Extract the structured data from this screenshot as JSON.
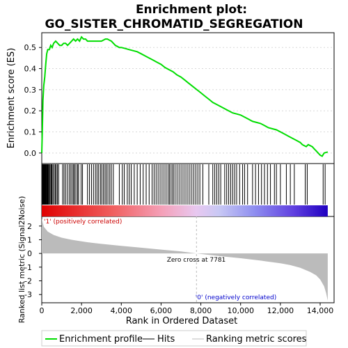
{
  "chart_data": {
    "type": "line",
    "title_line1": "Enrichment plot:",
    "title_line2": "GO_SISTER_CHROMATID_SEGREGATION",
    "ylabel_top": "Enrichment score (ES)",
    "ylabel_bottom": "Ranked list metric (Signal2Noise)",
    "xlabel": "Rank in Ordered Dataset",
    "x_ticks": [
      0,
      2000,
      4000,
      6000,
      8000,
      10000,
      12000,
      14000
    ],
    "x_tick_labels": [
      "0",
      "2,000",
      "4,000",
      "6,000",
      "8,000",
      "10,000",
      "12,000",
      "14,000"
    ],
    "xlim": [
      0,
      14700
    ],
    "n_genes": 14380,
    "es_ylim": [
      -0.05,
      0.57
    ],
    "es_ticks": [
      0.0,
      0.1,
      0.2,
      0.3,
      0.4,
      0.5
    ],
    "es_tick_labels": [
      "0.0",
      "0.1",
      "0.2",
      "0.3",
      "0.4",
      "0.5"
    ],
    "enrichment_profile": {
      "x": [
        0,
        30,
        60,
        100,
        150,
        200,
        250,
        300,
        380,
        450,
        520,
        600,
        700,
        800,
        900,
        1000,
        1100,
        1200,
        1300,
        1400,
        1500,
        1600,
        1700,
        1800,
        1900,
        2000,
        2100,
        2200,
        2300,
        2400,
        2500,
        2600,
        2700,
        2800,
        2900,
        3000,
        3100,
        3200,
        3300,
        3400,
        3500,
        3600,
        3700,
        3800,
        3900,
        4000,
        4200,
        4400,
        4600,
        4800,
        5000,
        5200,
        5400,
        5600,
        5800,
        6000,
        6200,
        6400,
        6600,
        6800,
        7000,
        7200,
        7400,
        7600,
        7800,
        8000,
        8200,
        8400,
        8600,
        8800,
        9000,
        9200,
        9400,
        9600,
        9800,
        10000,
        10200,
        10400,
        10600,
        10800,
        11000,
        11200,
        11400,
        11600,
        11800,
        12000,
        12200,
        12400,
        12600,
        12800,
        13000,
        13100,
        13200,
        13300,
        13400,
        13500,
        13600,
        13700,
        13800,
        13900,
        14000,
        14100,
        14200,
        14380
      ],
      "y": [
        0.0,
        0.12,
        0.25,
        0.32,
        0.36,
        0.42,
        0.47,
        0.49,
        0.49,
        0.51,
        0.5,
        0.52,
        0.53,
        0.52,
        0.51,
        0.51,
        0.52,
        0.52,
        0.51,
        0.52,
        0.53,
        0.54,
        0.53,
        0.54,
        0.53,
        0.55,
        0.54,
        0.54,
        0.53,
        0.53,
        0.53,
        0.53,
        0.53,
        0.53,
        0.53,
        0.53,
        0.535,
        0.54,
        0.54,
        0.535,
        0.53,
        0.52,
        0.51,
        0.505,
        0.5,
        0.5,
        0.495,
        0.49,
        0.485,
        0.48,
        0.47,
        0.46,
        0.45,
        0.44,
        0.43,
        0.42,
        0.405,
        0.395,
        0.385,
        0.37,
        0.36,
        0.345,
        0.33,
        0.315,
        0.3,
        0.285,
        0.27,
        0.255,
        0.24,
        0.23,
        0.22,
        0.21,
        0.2,
        0.19,
        0.185,
        0.18,
        0.17,
        0.16,
        0.15,
        0.145,
        0.14,
        0.13,
        0.12,
        0.115,
        0.11,
        0.1,
        0.09,
        0.08,
        0.07,
        0.06,
        0.05,
        0.04,
        0.035,
        0.03,
        0.04,
        0.035,
        0.03,
        0.02,
        0.01,
        0.0,
        -0.01,
        -0.015,
        0.0,
        0.005
      ]
    },
    "hits": [
      10,
      40,
      70,
      90,
      110,
      140,
      160,
      180,
      200,
      230,
      260,
      280,
      310,
      340,
      380,
      420,
      470,
      510,
      560,
      620,
      680,
      730,
      790,
      850,
      1050,
      1120,
      1200,
      1290,
      1380,
      1460,
      1530,
      1600,
      1650,
      1720,
      1800,
      1850,
      1980,
      2050,
      2300,
      2400,
      2500,
      2600,
      2700,
      2780,
      2860,
      2950,
      3020,
      3100,
      3180,
      3250,
      3330,
      3420,
      3500,
      3600,
      3900,
      4050,
      4150,
      4300,
      4400,
      4500,
      4650,
      4800,
      4950,
      5100,
      5250,
      5400,
      5550,
      5650,
      5750,
      5850,
      5950,
      6050,
      6150,
      6250,
      6350,
      6420,
      6500,
      6580,
      6650,
      6750,
      6850,
      6950,
      7050,
      7150,
      7250,
      7350,
      7450,
      7550,
      7650,
      7750,
      7850,
      7950,
      8100,
      8400,
      8600,
      8700,
      8800,
      8900,
      9000,
      9200,
      9300,
      9400,
      9500,
      9600,
      9700,
      9800,
      9950,
      10100,
      10200,
      10350,
      10600,
      10750,
      10900,
      11050,
      11200,
      11350,
      11500,
      11700,
      11800,
      12000,
      12300,
      12500,
      12700,
      13250,
      13350,
      14150,
      14250
    ],
    "metric": {
      "x": [
        0,
        100,
        300,
        600,
        1000,
        1500,
        2000,
        2500,
        3000,
        4000,
        5000,
        6000,
        7000,
        7781,
        8500,
        9000,
        10000,
        11000,
        12000,
        12500,
        13000,
        13500,
        13800,
        14000,
        14200,
        14300,
        14380
      ],
      "y": [
        2.55,
        1.95,
        1.6,
        1.35,
        1.15,
        1.0,
        0.88,
        0.78,
        0.7,
        0.55,
        0.42,
        0.28,
        0.15,
        0.0,
        -0.12,
        -0.2,
        -0.35,
        -0.52,
        -0.72,
        -0.85,
        -1.05,
        -1.35,
        -1.6,
        -1.9,
        -2.4,
        -2.9,
        -3.45
      ]
    },
    "metric_ylim": [
      -3.6,
      2.7
    ],
    "metric_ticks": [
      2,
      1,
      0,
      -1,
      -2,
      -3
    ],
    "metric_tick_labels": [
      "2",
      "1",
      "0",
      "-1",
      "-2",
      "-3"
    ],
    "zero_cross": 7781,
    "zero_cross_label": "Zero cross at 7781",
    "pos_label": "'1' (positively correlated)",
    "neg_label": "'0' (negatively correlated)",
    "legend": [
      "Enrichment profile",
      "Hits",
      "Ranking metric scores"
    ],
    "colors": {
      "profile": "#00dd00",
      "hits": "#000000",
      "metric_fill": "#bbbbbb",
      "pos_text": "#cc0000",
      "neg_text": "#0000cc",
      "zero_line": "#bbbbbb"
    },
    "heatmap_stops": [
      {
        "pos": 0.0,
        "color": "#e00000"
      },
      {
        "pos": 0.25,
        "color": "#f06060"
      },
      {
        "pos": 0.42,
        "color": "#f4a0b8"
      },
      {
        "pos": 0.54,
        "color": "#e8c8f0"
      },
      {
        "pos": 0.62,
        "color": "#c8c8f4"
      },
      {
        "pos": 0.74,
        "color": "#9090f0"
      },
      {
        "pos": 0.88,
        "color": "#6040e0"
      },
      {
        "pos": 1.0,
        "color": "#2000c0"
      }
    ]
  }
}
